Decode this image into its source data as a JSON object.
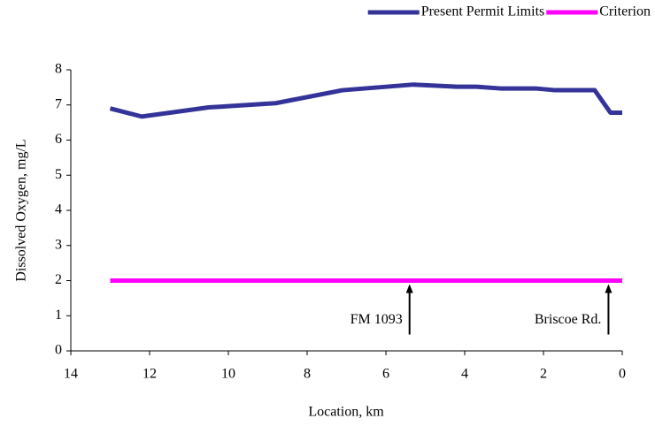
{
  "chart_data": {
    "type": "line",
    "x_label": "Location, km",
    "y_label": "Dissolved Oxygen, mg/L",
    "xlim": [
      14,
      0
    ],
    "xticks": [
      14,
      12,
      10,
      8,
      6,
      4,
      2,
      0
    ],
    "ylim": [
      0,
      8
    ],
    "yticks": [
      0,
      1,
      2,
      3,
      4,
      5,
      6,
      7,
      8
    ],
    "legend": "top-right",
    "series": [
      {
        "name": "Present Permit Limits",
        "color": "#333399",
        "x": [
          13,
          12.2,
          10.5,
          8.8,
          7.1,
          5.3,
          4.2,
          3.7,
          3.1,
          2.2,
          1.7,
          0.7,
          0.3,
          0
        ],
        "values": [
          6.9,
          6.67,
          6.93,
          7.05,
          7.42,
          7.58,
          7.52,
          7.52,
          7.47,
          7.47,
          7.42,
          7.42,
          6.78,
          6.78
        ]
      },
      {
        "name": "Criterion",
        "color": "#ff00ff",
        "x": [
          13,
          0
        ],
        "values": [
          2,
          2
        ]
      }
    ],
    "annotations": [
      {
        "text": "FM 1093",
        "x": 5.4,
        "y": 2
      },
      {
        "text": "Briscoe Rd.",
        "x": 0.35,
        "y": 2
      }
    ]
  }
}
